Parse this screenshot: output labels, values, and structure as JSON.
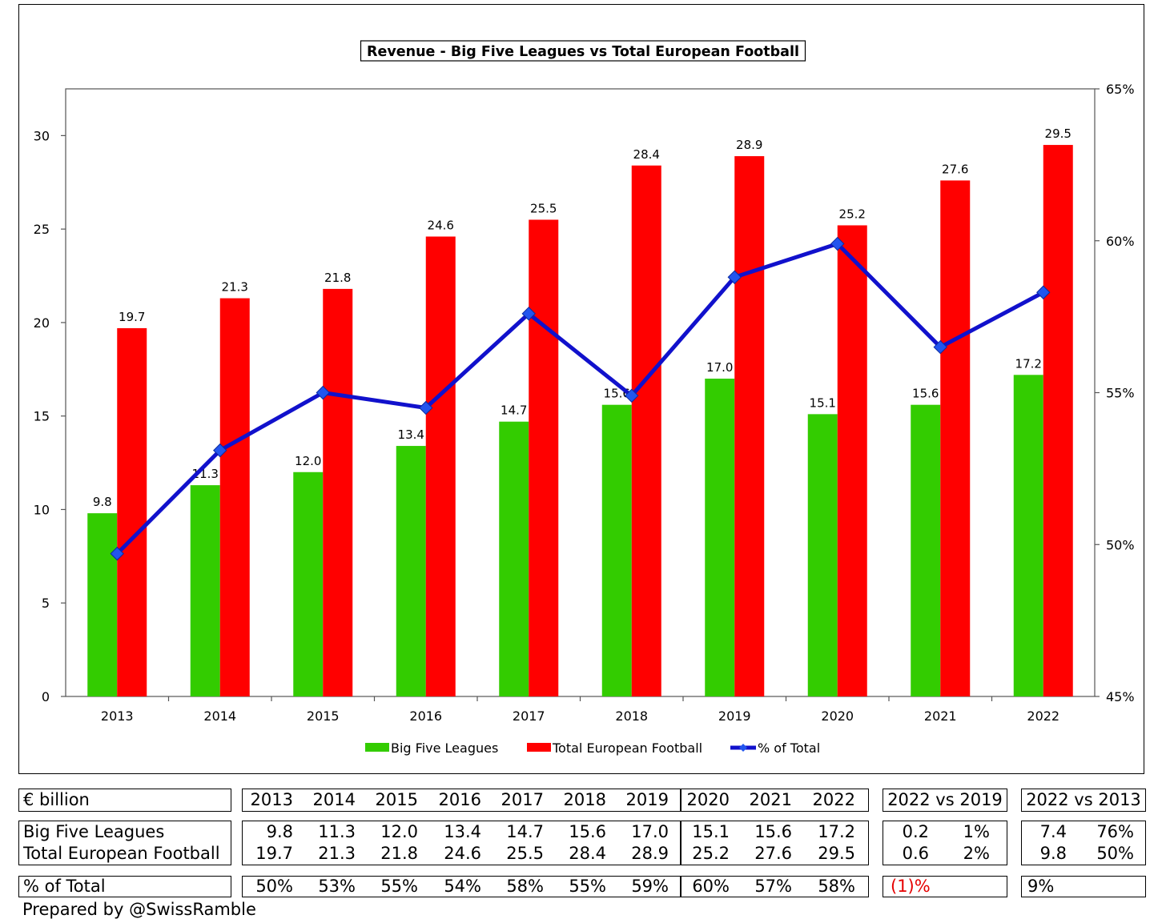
{
  "chart_data": {
    "type": "bar",
    "title": "Revenue - Big Five Leagues vs Total European Football",
    "categories": [
      "2013",
      "2014",
      "2015",
      "2016",
      "2017",
      "2018",
      "2019",
      "2020",
      "2021",
      "2022"
    ],
    "series": [
      {
        "name": "Big Five Leagues",
        "type": "bar",
        "color": "#33cc00",
        "axis": "left",
        "values": [
          9.8,
          11.3,
          12.0,
          13.4,
          14.7,
          15.6,
          17.0,
          15.1,
          15.6,
          17.2
        ],
        "labels": [
          "9.8",
          "11.3",
          "12.0",
          "13.4",
          "14.7",
          "15.6",
          "17.0",
          "15.1",
          "15.6",
          "17.2"
        ]
      },
      {
        "name": "Total European Football",
        "type": "bar",
        "color": "#ff0000",
        "axis": "left",
        "values": [
          19.7,
          21.3,
          21.8,
          24.6,
          25.5,
          28.4,
          28.9,
          25.2,
          27.6,
          29.5
        ],
        "labels": [
          "19.7",
          "21.3",
          "21.8",
          "24.6",
          "25.5",
          "28.4",
          "28.9",
          "25.2",
          "27.6",
          "29.5"
        ]
      },
      {
        "name": "% of Total",
        "type": "line",
        "color": "#1111cc",
        "marker_color": "#2255ee",
        "axis": "right",
        "values": [
          49.7,
          53.1,
          55.0,
          54.5,
          57.6,
          54.9,
          58.8,
          59.9,
          56.5,
          58.3
        ]
      }
    ],
    "y_left": {
      "range": [
        0,
        32.5
      ],
      "ticks": [
        0,
        5,
        10,
        15,
        20,
        25,
        30
      ],
      "tick_labels": [
        "0",
        "5",
        "10",
        "15",
        "20",
        "25",
        "30"
      ]
    },
    "y_right": {
      "range": [
        45,
        65
      ],
      "ticks": [
        45,
        50,
        55,
        60,
        65
      ],
      "tick_labels": [
        "45%",
        "50%",
        "55%",
        "60%",
        "65%"
      ]
    },
    "legend_position": "bottom",
    "grid": false
  },
  "table": {
    "unit_label": "€ billion",
    "years": [
      "2013",
      "2014",
      "2015",
      "2016",
      "2017",
      "2018",
      "2019",
      "2020",
      "2021",
      "2022"
    ],
    "cmp1_header": "2022 vs 2019",
    "cmp2_header": "2022 vs 2013",
    "rows": [
      {
        "label": "Big Five Leagues",
        "values": [
          "9.8",
          "11.3",
          "12.0",
          "13.4",
          "14.7",
          "15.6",
          "17.0",
          "15.1",
          "15.6",
          "17.2"
        ],
        "cmp1_abs": "0.2",
        "cmp1_pct": "1%",
        "cmp2_abs": "7.4",
        "cmp2_pct": "76%"
      },
      {
        "label": "Total European Football",
        "values": [
          "19.7",
          "21.3",
          "21.8",
          "24.6",
          "25.5",
          "28.4",
          "28.9",
          "25.2",
          "27.6",
          "29.5"
        ],
        "cmp1_abs": "0.6",
        "cmp1_pct": "2%",
        "cmp2_abs": "9.8",
        "cmp2_pct": "50%"
      }
    ],
    "pct_row": {
      "label": "% of Total",
      "values": [
        "50%",
        "53%",
        "55%",
        "54%",
        "58%",
        "55%",
        "59%",
        "60%",
        "57%",
        "58%"
      ],
      "cmp1": "(1)%",
      "cmp2": "9%"
    }
  },
  "footer": {
    "credit": "Prepared by @SwissRamble"
  },
  "colors": {
    "negative": "#e60000"
  }
}
